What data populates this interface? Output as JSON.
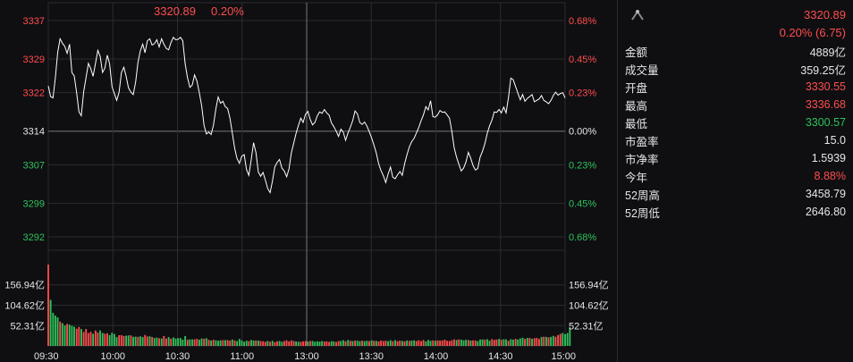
{
  "colors": {
    "background": "#0f0f12",
    "grid": "#2b2b30",
    "up": "#ff4d4d",
    "down": "#2fc25b",
    "neutral": "#e6e6e6",
    "price_line": "#ffffff"
  },
  "header": {
    "last_price": "3320.89",
    "change_pct": "0.20%"
  },
  "summary": {
    "price": "3320.89",
    "change": "0.20% (6.75)"
  },
  "stats": [
    {
      "label": "金额",
      "value": "4889亿",
      "color": "neutral"
    },
    {
      "label": "成交量",
      "value": "359.25亿",
      "color": "neutral"
    },
    {
      "label": "开盘",
      "value": "3330.55",
      "color": "up"
    },
    {
      "label": "最高",
      "value": "3336.68",
      "color": "up"
    },
    {
      "label": "最低",
      "value": "3300.57",
      "color": "down"
    },
    {
      "label": "市盈率",
      "value": "15.0",
      "color": "neutral"
    },
    {
      "label": "市净率",
      "value": "1.5939",
      "color": "neutral"
    },
    {
      "label": "今年",
      "value": "8.88%",
      "color": "up"
    },
    {
      "label": "52周高",
      "value": "3458.79",
      "color": "neutral"
    },
    {
      "label": "52周低",
      "value": "2646.80",
      "color": "neutral"
    }
  ],
  "chart_data": {
    "type": "line",
    "price_axis_left": [
      "3337",
      "3329",
      "3322",
      "3314",
      "3307",
      "3299",
      "3292"
    ],
    "price_axis_right": [
      "0.68%",
      "0.45%",
      "0.23%",
      "0.00%",
      "0.23%",
      "0.45%",
      "0.68%"
    ],
    "price_axis_values": [
      3337,
      3329,
      3322,
      3314,
      3307,
      3299,
      3292
    ],
    "volume_axis_left": [
      "156.94亿",
      "104.62亿",
      "52.31亿"
    ],
    "volume_axis_right": [
      "156.94亿",
      "104.62亿",
      "52.31亿"
    ],
    "volume_axis_values": [
      156.94,
      104.62,
      52.31
    ],
    "x_ticks": [
      "09:30",
      "10:00",
      "10:30",
      "11:00",
      "13:00",
      "13:30",
      "14:00",
      "14:30",
      "15:00"
    ],
    "ylim": [
      3292,
      3337
    ],
    "volume_max": 209.25,
    "grid": true,
    "price": [
      3323.4,
      3321.2,
      3320.9,
      3325.1,
      3330.5,
      3333.2,
      3332.3,
      3331.6,
      3330.2,
      3332.1,
      3326.2,
      3325.5,
      3322.0,
      3318.0,
      3317.2,
      3322.2,
      3325.1,
      3328.1,
      3327.0,
      3325.4,
      3328.1,
      3330.8,
      3329.5,
      3326.2,
      3327.1,
      3329.8,
      3328.0,
      3323.2,
      3321.8,
      3320.4,
      3322.1,
      3326.2,
      3327.3,
      3325.4,
      3323.0,
      3322.1,
      3321.6,
      3324.2,
      3328.3,
      3330.7,
      3332.1,
      3330.3,
      3332.8,
      3333.2,
      3331.9,
      3332.2,
      3333.0,
      3331.5,
      3333.2,
      3332.1,
      3331.2,
      3330.9,
      3332.4,
      3333.5,
      3333.0,
      3333.1,
      3333.5,
      3332.8,
      3328.0,
      3325.1,
      3323.1,
      3323.6,
      3325.7,
      3324.4,
      3322.0,
      3319.2,
      3315.2,
      3313.4,
      3313.8,
      3313.3,
      3315.2,
      3318.6,
      3321.1,
      3319.8,
      3320.2,
      3319.1,
      3318.7,
      3316.7,
      3313.5,
      3310.4,
      3308.3,
      3307.3,
      3308.8,
      3309.1,
      3306.0,
      3304.8,
      3308.1,
      3311.6,
      3309.5,
      3305.5,
      3304.6,
      3305.4,
      3303.8,
      3302.0,
      3301.2,
      3303.6,
      3306.6,
      3307.5,
      3308.1,
      3306.3,
      3305.7,
      3304.5,
      3306.1,
      3309.4,
      3311.5,
      3313.5,
      3315.2,
      3316.7,
      3315.8,
      3317.5,
      3318.1,
      3316.4,
      3315.3,
      3315.8,
      3317.2,
      3318.0,
      3317.7,
      3318.5,
      3317.8,
      3317.3,
      3315.7,
      3314.9,
      3314.0,
      3312.9,
      3314.4,
      3313.8,
      3312.1,
      3313.6,
      3314.8,
      3316.2,
      3318.2,
      3317.6,
      3315.8,
      3315.4,
      3315.9,
      3315.1,
      3313.9,
      3312.6,
      3311.1,
      3309.4,
      3307.2,
      3305.8,
      3304.7,
      3303.3,
      3305.1,
      3306.5,
      3304.4,
      3304.1,
      3304.9,
      3305.6,
      3304.8,
      3307.2,
      3309.1,
      3310.7,
      3311.8,
      3312.5,
      3313.6,
      3314.8,
      3316.2,
      3317.4,
      3319.1,
      3318.4,
      3320.3,
      3317.0,
      3316.9,
      3317.4,
      3318.3,
      3317.9,
      3318.0,
      3317.4,
      3316.7,
      3314.0,
      3310.5,
      3308.6,
      3307.1,
      3305.7,
      3306.3,
      3307.6,
      3309.6,
      3308.4,
      3306.8,
      3305.9,
      3306.2,
      3308.6,
      3309.8,
      3311.4,
      3313.5,
      3315.1,
      3316.3,
      3318.0,
      3317.9,
      3318.5,
      3317.8,
      3319.0,
      3317.8,
      3321.0,
      3325.0,
      3324.7,
      3323.3,
      3321.9,
      3320.5,
      3321.6,
      3320.2,
      3320.8,
      3321.2,
      3321.6,
      3320.1,
      3320.4,
      3320.7,
      3321.4,
      3320.4,
      3320.1,
      3319.7,
      3320.4,
      3321.4,
      3322.1,
      3321.5,
      3321.8,
      3322.0,
      3320.9
    ],
    "volume": [
      209.25,
      118.35,
      85.01,
      78.02,
      73.41,
      62.62,
      58.44,
      52.43,
      56.47,
      54.83,
      51.56,
      49.3,
      44.23,
      48.43,
      43.26,
      35.79,
      43.51,
      33.2,
      36.21,
      31.28,
      39.44,
      34.6,
      39.75,
      33.28,
      31.4,
      32.41,
      27.58,
      33.54,
      30.81,
      22.81,
      27.7,
      27.87,
      25.46,
      26.31,
      27.12,
      27.14,
      23.4,
      24.02,
      23.41,
      24.56,
      22.76,
      28.23,
      24.4,
      24.9,
      22.99,
      20.17,
      21.64,
      19.48,
      19.22,
      25.21,
      18.88,
      22.85,
      18.71,
      21.66,
      19.2,
      20.03,
      20.17,
      16.09,
      25.3,
      15.84,
      16.89,
      16.74,
      17.09,
      18.13,
      15.94,
      19.1,
      18.62,
      19.72,
      15.74,
      13.75,
      15.94,
      14.6,
      13.43,
      14.27,
      15.06,
      14.87,
      14.71,
      13.75,
      16.65,
      14.09,
      12.33,
      18.02,
      13.95,
      10.7,
      13.28,
      12.43,
      15.19,
      13.9,
      13.95,
      13.48,
      12.36,
      11.88,
      10.58,
      12.6,
      10.79,
      13.02,
      9.55,
      11.97,
      12.66,
      10.57,
      12.32,
      14.29,
      11.68,
      14.25,
      12.75,
      11.56,
      10.73,
      10.69,
      11.69,
      12.38,
      11.37,
      12.62,
      12.66,
      10.72,
      11.71,
      11.04,
      12.43,
      11.26,
      11.77,
      10.44,
      12.02,
      11.97,
      10.23,
      12.36,
      12.87,
      14.66,
      11.91,
      15.1,
      13.22,
      12.73,
      13.5,
      13.24,
      12.11,
      13.47,
      12.17,
      13.29,
      12.42,
      14.24,
      13.0,
      12.78,
      11.47,
      13.54,
      12.74,
      13.45,
      12.26,
      14.72,
      12.09,
      15.01,
      12.11,
      13.63,
      12.59,
      11.7,
      14.13,
      12.85,
      13.69,
      14.32,
      12.48,
      14.58,
      12.41,
      15.33,
      11.42,
      15.38,
      13.21,
      14.23,
      13.29,
      14.15,
      13.87,
      14.0,
      16.0,
      13.06,
      12.8,
      14.55,
      16.87,
      15.16,
      16.75,
      15.78,
      14.6,
      15.56,
      15.15,
      13.69,
      14.33,
      14.29,
      12.25,
      16.67,
      16.63,
      16.08,
      17.27,
      13.47,
      17.46,
      15.67,
      16.34,
      18.0,
      15.87,
      17.22,
      16.8,
      13.17,
      17.36,
      16.16,
      18.22,
      16.48,
      19.29,
      21.21,
      18.08,
      20.47,
      20.31,
      18.41,
      19.7,
      20.76,
      18.14,
      22.89,
      23.66,
      23.28,
      22.07,
      23.26,
      25.66,
      23.55,
      27.93,
      30.96,
      33.23,
      30.2,
      33.05,
      48.04
    ],
    "volume_up": [
      true,
      false,
      false,
      false,
      false,
      true,
      false,
      false,
      true,
      false,
      false,
      false,
      true,
      true,
      false,
      true,
      true,
      true,
      true,
      false,
      true,
      true,
      false,
      false,
      true,
      true,
      false,
      false,
      false,
      false,
      true,
      true,
      true,
      false,
      false,
      true,
      false,
      false,
      true,
      false,
      false,
      true,
      true,
      false,
      true,
      false,
      false,
      true,
      false,
      true,
      true,
      false,
      true,
      false,
      false,
      false,
      false,
      false,
      false,
      true,
      false,
      false,
      true,
      true,
      false,
      false,
      true,
      false,
      true,
      false,
      true,
      false,
      false,
      false,
      true,
      false,
      true,
      true,
      false,
      true,
      false,
      false,
      false,
      false,
      false,
      true,
      false,
      false,
      true,
      false,
      true,
      true,
      true,
      false,
      true,
      false,
      true,
      true,
      false,
      false,
      true,
      true,
      true,
      true,
      true,
      false,
      false,
      true,
      true,
      true,
      false,
      true,
      false,
      false,
      false,
      false,
      false,
      true,
      true,
      true,
      false,
      false,
      true,
      true,
      false,
      false,
      true,
      false,
      true,
      false,
      true,
      false,
      false,
      true,
      false,
      false,
      true,
      false,
      true,
      false,
      true,
      true,
      true,
      true,
      false,
      false,
      true,
      false,
      true,
      true,
      false,
      true,
      false,
      true,
      false,
      false,
      true,
      true,
      true,
      true,
      false,
      false,
      false,
      true,
      false,
      true,
      true,
      true,
      true,
      true,
      true,
      true,
      true,
      false,
      true,
      false,
      false,
      false,
      true,
      false,
      true,
      true,
      false,
      false,
      false,
      true,
      false,
      false,
      true,
      true,
      true,
      false,
      true,
      false,
      false,
      true,
      false,
      false,
      true,
      false,
      false,
      false,
      true,
      false,
      true,
      false,
      true,
      true,
      true,
      false,
      true,
      false,
      true,
      false,
      false,
      true,
      true,
      true
    ]
  }
}
